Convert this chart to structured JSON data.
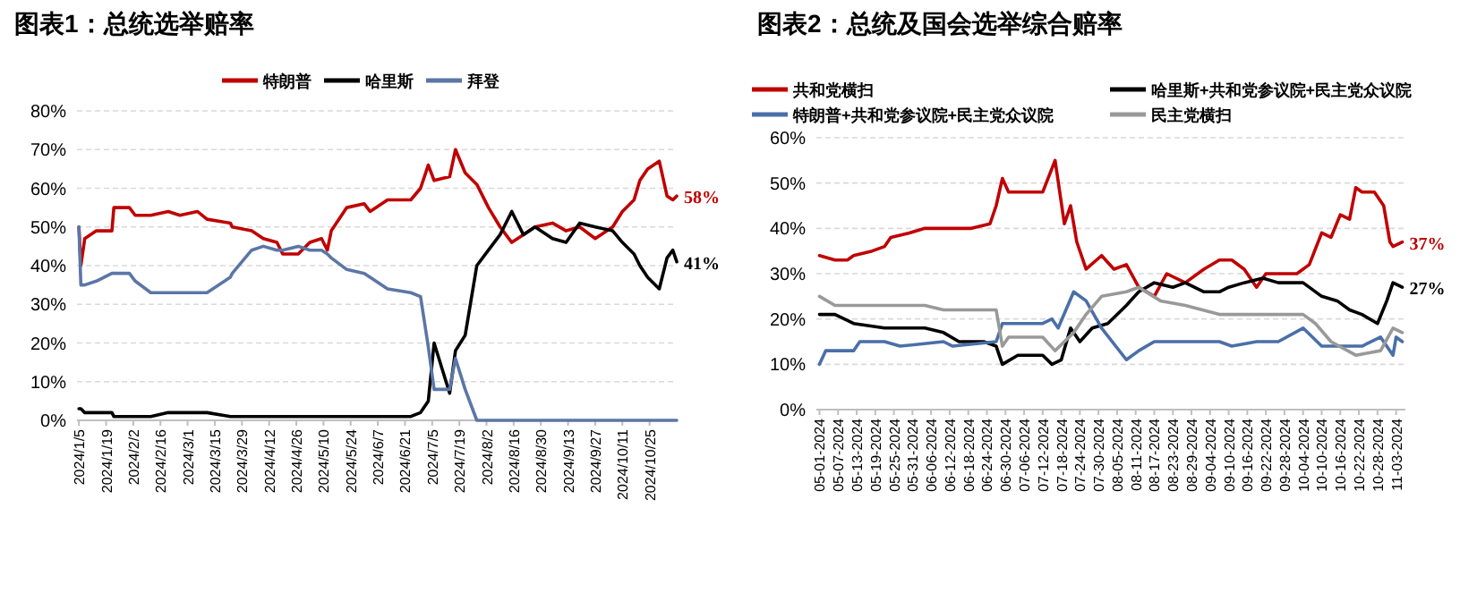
{
  "chart_data": [
    {
      "type": "line",
      "title": "图表1：总统选举赔率",
      "legend": "top",
      "grid": "y",
      "xlim": [
        "2024-01-04",
        "2024-11-08"
      ],
      "ylim": [
        0,
        80
      ],
      "yticks": [
        {
          "value": 0,
          "label": "0%"
        },
        {
          "value": 10,
          "label": "10%"
        },
        {
          "value": 20,
          "label": "20%"
        },
        {
          "value": 30,
          "label": "30%"
        },
        {
          "value": 40,
          "label": "40%"
        },
        {
          "value": 50,
          "label": "50%"
        },
        {
          "value": 60,
          "label": "60%"
        },
        {
          "value": 70,
          "label": "70%"
        },
        {
          "value": 80,
          "label": "80%"
        }
      ],
      "xticks": [
        {
          "value": "2024-01-05",
          "label": "2024/1/5"
        },
        {
          "value": "2024-01-19",
          "label": "2024/1/19"
        },
        {
          "value": "2024-02-02",
          "label": "2024/2/2"
        },
        {
          "value": "2024-02-16",
          "label": "2024/2/16"
        },
        {
          "value": "2024-03-01",
          "label": "2024/3/1"
        },
        {
          "value": "2024-03-15",
          "label": "2024/3/15"
        },
        {
          "value": "2024-03-29",
          "label": "2024/3/29"
        },
        {
          "value": "2024-04-12",
          "label": "2024/4/12"
        },
        {
          "value": "2024-04-26",
          "label": "2024/4/26"
        },
        {
          "value": "2024-05-10",
          "label": "2024/5/10"
        },
        {
          "value": "2024-05-24",
          "label": "2024/5/24"
        },
        {
          "value": "2024-06-07",
          "label": "2024/6/7"
        },
        {
          "value": "2024-06-21",
          "label": "2024/6/21"
        },
        {
          "value": "2024-07-05",
          "label": "2024/7/5"
        },
        {
          "value": "2024-07-19",
          "label": "2024/7/19"
        },
        {
          "value": "2024-08-02",
          "label": "2024/8/2"
        },
        {
          "value": "2024-08-16",
          "label": "2024/8/16"
        },
        {
          "value": "2024-08-30",
          "label": "2024/8/30"
        },
        {
          "value": "2024-09-13",
          "label": "2024/9/13"
        },
        {
          "value": "2024-09-27",
          "label": "2024/9/27"
        },
        {
          "value": "2024-10-11",
          "label": "2024/10/11"
        },
        {
          "value": "2024-10-25",
          "label": "2024/10/25"
        }
      ],
      "x": [
        "2024-01-05",
        "2024-01-06",
        "2024-01-08",
        "2024-01-14",
        "2024-01-22",
        "2024-01-23",
        "2024-01-31",
        "2024-02-03",
        "2024-02-11",
        "2024-02-20",
        "2024-02-26",
        "2024-03-06",
        "2024-03-11",
        "2024-03-23",
        "2024-03-24",
        "2024-04-03",
        "2024-04-09",
        "2024-04-16",
        "2024-04-19",
        "2024-04-27",
        "2024-05-03",
        "2024-05-09",
        "2024-05-12",
        "2024-05-14",
        "2024-05-22",
        "2024-05-31",
        "2024-06-03",
        "2024-06-12",
        "2024-06-24",
        "2024-06-29",
        "2024-07-03",
        "2024-07-06",
        "2024-07-14",
        "2024-07-17",
        "2024-07-22",
        "2024-07-28",
        "2024-08-03",
        "2024-08-09",
        "2024-08-15",
        "2024-08-21",
        "2024-08-27",
        "2024-09-05",
        "2024-09-12",
        "2024-09-19",
        "2024-09-27",
        "2024-10-06",
        "2024-10-11",
        "2024-10-17",
        "2024-10-20",
        "2024-10-24",
        "2024-10-30",
        "2024-11-03",
        "2024-11-06",
        "2024-11-08"
      ],
      "series": [
        {
          "name": "特朗普",
          "color": "#c00000",
          "values": [
            50,
            40,
            47,
            49,
            49,
            55,
            55,
            53,
            53,
            54,
            53,
            54,
            52,
            51,
            50,
            49,
            47,
            46,
            43,
            43,
            46,
            47,
            44,
            49,
            55,
            56,
            54,
            57,
            57,
            60,
            66,
            62,
            63,
            70,
            64,
            61,
            55,
            50,
            46,
            48,
            50,
            51,
            49,
            50,
            47,
            50,
            54,
            57,
            62,
            65,
            67,
            58,
            57,
            58
          ]
        },
        {
          "name": "哈里斯",
          "color": "#000000",
          "values": [
            3,
            3,
            2,
            2,
            2,
            1,
            1,
            1,
            1,
            2,
            2,
            2,
            2,
            1,
            1,
            1,
            1,
            1,
            1,
            1,
            1,
            1,
            1,
            1,
            1,
            1,
            1,
            1,
            1,
            2,
            5,
            20,
            7,
            18,
            22,
            40,
            44,
            48,
            54,
            48,
            50,
            47,
            46,
            51,
            50,
            49,
            46,
            43,
            40,
            37,
            34,
            42,
            44,
            41
          ]
        },
        {
          "name": "拜登",
          "color": "#5b76a6",
          "values": [
            50,
            35,
            35,
            36,
            38,
            38,
            38,
            36,
            33,
            33,
            33,
            33,
            33,
            37,
            38,
            44,
            45,
            44,
            44,
            45,
            44,
            44,
            43,
            42,
            39,
            38,
            37,
            34,
            33,
            32,
            19,
            8,
            8,
            16,
            8,
            0,
            0,
            0,
            0,
            0,
            0,
            0,
            0,
            0,
            0,
            0,
            0,
            0,
            0,
            0,
            0,
            0,
            0,
            0
          ]
        }
      ],
      "annotations": [
        {
          "text": "58%",
          "x": "2024-11-08",
          "y": 58
        },
        {
          "text": "41%",
          "x": "2024-11-08",
          "y": 41
        }
      ]
    },
    {
      "type": "line",
      "title": "图表2：总统及国会选举综合赔率",
      "legend": "top",
      "grid": "y",
      "xlim": [
        "2024-04-30",
        "2024-11-06"
      ],
      "ylim": [
        0,
        60
      ],
      "yticks": [
        {
          "value": 0,
          "label": "0%"
        },
        {
          "value": 10,
          "label": "10%"
        },
        {
          "value": 20,
          "label": "20%"
        },
        {
          "value": 30,
          "label": "30%"
        },
        {
          "value": 40,
          "label": "40%"
        },
        {
          "value": 50,
          "label": "50%"
        },
        {
          "value": 60,
          "label": "60%"
        }
      ],
      "xticks": [
        {
          "value": "2024-05-01",
          "label": "05-01-2024"
        },
        {
          "value": "2024-05-07",
          "label": "05-07-2024"
        },
        {
          "value": "2024-05-13",
          "label": "05-13-2024"
        },
        {
          "value": "2024-05-19",
          "label": "05-19-2024"
        },
        {
          "value": "2024-05-25",
          "label": "05-25-2024"
        },
        {
          "value": "2024-05-31",
          "label": "05-31-2024"
        },
        {
          "value": "2024-06-06",
          "label": "06-06-2024"
        },
        {
          "value": "2024-06-12",
          "label": "06-12-2024"
        },
        {
          "value": "2024-06-18",
          "label": "06-18-2024"
        },
        {
          "value": "2024-06-24",
          "label": "06-24-2024"
        },
        {
          "value": "2024-06-30",
          "label": "06-30-2024"
        },
        {
          "value": "2024-07-06",
          "label": "07-06-2024"
        },
        {
          "value": "2024-07-12",
          "label": "07-12-2024"
        },
        {
          "value": "2024-07-18",
          "label": "07-18-2024"
        },
        {
          "value": "2024-07-24",
          "label": "07-24-2024"
        },
        {
          "value": "2024-07-30",
          "label": "07-30-2024"
        },
        {
          "value": "2024-08-05",
          "label": "08-05-2024"
        },
        {
          "value": "2024-08-11",
          "label": "08-11-2024"
        },
        {
          "value": "2024-08-17",
          "label": "08-17-2024"
        },
        {
          "value": "2024-08-23",
          "label": "08-23-2024"
        },
        {
          "value": "2024-08-29",
          "label": "08-29-2024"
        },
        {
          "value": "2024-09-04",
          "label": "09-04-2024"
        },
        {
          "value": "2024-09-10",
          "label": "09-10-2024"
        },
        {
          "value": "2024-09-16",
          "label": "09-16-2024"
        },
        {
          "value": "2024-09-22",
          "label": "09-22-2024"
        },
        {
          "value": "2024-09-28",
          "label": "09-28-2024"
        },
        {
          "value": "2024-10-04",
          "label": "10-04-2024"
        },
        {
          "value": "2024-10-10",
          "label": "10-10-2024"
        },
        {
          "value": "2024-10-16",
          "label": "10-16-2024"
        },
        {
          "value": "2024-10-22",
          "label": "10-22-2024"
        },
        {
          "value": "2024-10-28",
          "label": "10-28-2024"
        },
        {
          "value": "2024-11-03",
          "label": "11-03-2024"
        }
      ],
      "series": [
        {
          "name": "共和党横扫",
          "color": "#c00000",
          "x": [
            "2024-05-01",
            "2024-05-06",
            "2024-05-10",
            "2024-05-12",
            "2024-05-18",
            "2024-05-22",
            "2024-05-24",
            "2024-05-30",
            "2024-06-04",
            "2024-06-10",
            "2024-06-19",
            "2024-06-25",
            "2024-06-27",
            "2024-06-29",
            "2024-07-01",
            "2024-07-04",
            "2024-07-12",
            "2024-07-16",
            "2024-07-19",
            "2024-07-21",
            "2024-07-23",
            "2024-07-26",
            "2024-07-31",
            "2024-08-04",
            "2024-08-08",
            "2024-08-12",
            "2024-08-17",
            "2024-08-21",
            "2024-08-27",
            "2024-09-02",
            "2024-09-07",
            "2024-09-11",
            "2024-09-15",
            "2024-09-19",
            "2024-09-22",
            "2024-09-26",
            "2024-10-02",
            "2024-10-06",
            "2024-10-10",
            "2024-10-13",
            "2024-10-16",
            "2024-10-19",
            "2024-10-21",
            "2024-10-23",
            "2024-10-27",
            "2024-10-30",
            "2024-11-01",
            "2024-11-02",
            "2024-11-05"
          ],
          "values": [
            34,
            33,
            33,
            34,
            35,
            36,
            38,
            39,
            40,
            40,
            40,
            41,
            45,
            51,
            48,
            48,
            48,
            55,
            41,
            45,
            37,
            31,
            34,
            31,
            32,
            27,
            25,
            30,
            28,
            31,
            33,
            33,
            31,
            27,
            30,
            30,
            30,
            32,
            39,
            38,
            43,
            42,
            49,
            48,
            48,
            45,
            37,
            36,
            37
          ]
        },
        {
          "name": "哈里斯+共和党参议院+民主党众议院",
          "color": "#000000",
          "x": [
            "2024-05-01",
            "2024-05-06",
            "2024-05-12",
            "2024-05-22",
            "2024-06-04",
            "2024-06-10",
            "2024-06-15",
            "2024-06-23",
            "2024-06-27",
            "2024-06-29",
            "2024-07-04",
            "2024-07-12",
            "2024-07-15",
            "2024-07-18",
            "2024-07-21",
            "2024-07-24",
            "2024-07-28",
            "2024-08-02",
            "2024-08-08",
            "2024-08-12",
            "2024-08-17",
            "2024-08-23",
            "2024-08-27",
            "2024-09-02",
            "2024-09-07",
            "2024-09-10",
            "2024-09-15",
            "2024-09-21",
            "2024-09-26",
            "2024-10-04",
            "2024-10-10",
            "2024-10-15",
            "2024-10-19",
            "2024-10-23",
            "2024-10-28",
            "2024-10-31",
            "2024-11-02",
            "2024-11-05"
          ],
          "values": [
            21,
            21,
            19,
            18,
            18,
            17,
            15,
            15,
            14,
            10,
            12,
            12,
            10,
            11,
            18,
            15,
            18,
            19,
            23,
            26,
            28,
            27,
            28,
            26,
            26,
            27,
            28,
            29,
            28,
            28,
            25,
            24,
            22,
            21,
            19,
            24,
            28,
            27
          ]
        },
        {
          "name": "特朗普+共和党参议院+民主党众议院",
          "color": "#4a6fa8",
          "x": [
            "2024-05-01",
            "2024-05-03",
            "2024-05-12",
            "2024-05-14",
            "2024-05-22",
            "2024-05-27",
            "2024-06-10",
            "2024-06-13",
            "2024-06-27",
            "2024-06-29",
            "2024-07-12",
            "2024-07-15",
            "2024-07-17",
            "2024-07-22",
            "2024-07-26",
            "2024-07-31",
            "2024-08-08",
            "2024-08-12",
            "2024-08-17",
            "2024-08-23",
            "2024-09-07",
            "2024-09-11",
            "2024-09-19",
            "2024-09-26",
            "2024-10-04",
            "2024-10-10",
            "2024-10-15",
            "2024-10-23",
            "2024-10-29",
            "2024-11-02",
            "2024-11-03",
            "2024-11-05"
          ],
          "values": [
            10,
            13,
            13,
            15,
            15,
            14,
            15,
            14,
            15,
            19,
            19,
            20,
            18,
            26,
            24,
            18,
            11,
            13,
            15,
            15,
            15,
            14,
            15,
            15,
            18,
            14,
            14,
            14,
            16,
            12,
            16,
            15
          ]
        },
        {
          "name": "民主党横扫",
          "color": "#999999",
          "x": [
            "2024-05-01",
            "2024-05-06",
            "2024-05-16",
            "2024-06-04",
            "2024-06-10",
            "2024-06-27",
            "2024-06-29",
            "2024-07-01",
            "2024-07-12",
            "2024-07-16",
            "2024-07-22",
            "2024-07-26",
            "2024-07-31",
            "2024-08-08",
            "2024-08-12",
            "2024-08-19",
            "2024-08-27",
            "2024-09-07",
            "2024-09-15",
            "2024-09-19",
            "2024-10-04",
            "2024-10-08",
            "2024-10-13",
            "2024-10-21",
            "2024-10-29",
            "2024-11-02",
            "2024-11-05"
          ],
          "values": [
            25,
            23,
            23,
            23,
            22,
            22,
            14,
            16,
            16,
            13,
            17,
            21,
            25,
            26,
            27,
            24,
            23,
            21,
            21,
            21,
            21,
            19,
            15,
            12,
            13,
            18,
            17
          ]
        }
      ],
      "annotations": [
        {
          "text": "37%",
          "x": "2024-11-05",
          "y": 37
        },
        {
          "text": "27%",
          "x": "2024-11-05",
          "y": 27
        }
      ]
    }
  ]
}
